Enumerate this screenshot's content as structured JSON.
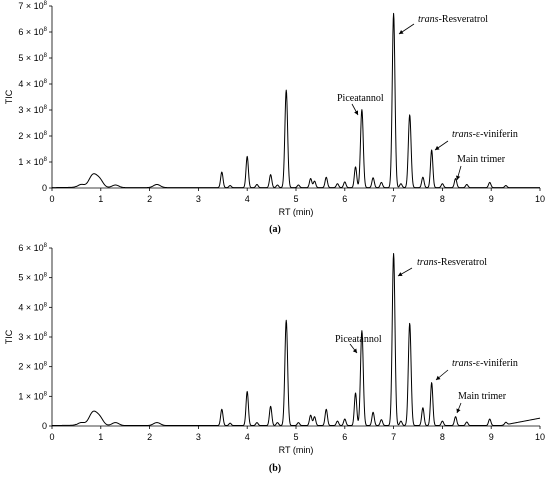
{
  "chart_data": [
    {
      "type": "line",
      "panel_label": "(a)",
      "xlabel": "RT (min)",
      "ylabel": "TIC",
      "xlim": [
        0,
        10
      ],
      "ylim": [
        0,
        700000000
      ],
      "x_ticks": [
        0,
        1,
        2,
        3,
        4,
        5,
        6,
        7,
        8,
        9,
        10
      ],
      "x_tick_labels": [
        "0",
        "1",
        "2",
        "3",
        "4",
        "5",
        "6",
        "7",
        "8",
        "9",
        "10"
      ],
      "y_ticks": [
        0,
        100000000,
        200000000,
        300000000,
        400000000,
        500000000,
        600000000,
        700000000
      ],
      "y_tick_labels": [
        "0",
        "1 × 10^8",
        "2 × 10^8",
        "3 × 10^8",
        "4 × 10^8",
        "5 × 10^8",
        "6 × 10^8",
        "7 × 10^8"
      ],
      "peaks": [
        {
          "rt": 0.6,
          "value": 12000000
        },
        {
          "rt": 0.8,
          "value": 25000000
        },
        {
          "rt": 0.87,
          "value": 30000000
        },
        {
          "rt": 0.98,
          "value": 28000000
        },
        {
          "rt": 1.3,
          "value": 10000000
        },
        {
          "rt": 2.15,
          "value": 12000000
        },
        {
          "rt": 3.48,
          "value": 60000000
        },
        {
          "rt": 3.65,
          "value": 8000000
        },
        {
          "rt": 4.0,
          "value": 120000000
        },
        {
          "rt": 4.2,
          "value": 12000000
        },
        {
          "rt": 4.48,
          "value": 50000000
        },
        {
          "rt": 4.62,
          "value": 10000000
        },
        {
          "rt": 4.8,
          "value": 375000000
        },
        {
          "rt": 5.05,
          "value": 10000000
        },
        {
          "rt": 5.3,
          "value": 35000000
        },
        {
          "rt": 5.38,
          "value": 25000000
        },
        {
          "rt": 5.62,
          "value": 40000000
        },
        {
          "rt": 5.85,
          "value": 15000000
        },
        {
          "rt": 6.0,
          "value": 22000000
        },
        {
          "rt": 6.22,
          "value": 80000000
        },
        {
          "rt": 6.35,
          "value": 300000000
        },
        {
          "rt": 6.58,
          "value": 38000000
        },
        {
          "rt": 6.75,
          "value": 20000000
        },
        {
          "rt": 7.0,
          "value": 670000000
        },
        {
          "rt": 7.15,
          "value": 15000000
        },
        {
          "rt": 7.33,
          "value": 280000000
        },
        {
          "rt": 7.6,
          "value": 40000000
        },
        {
          "rt": 7.78,
          "value": 145000000
        },
        {
          "rt": 8.0,
          "value": 15000000
        },
        {
          "rt": 8.27,
          "value": 35000000
        },
        {
          "rt": 8.5,
          "value": 12000000
        },
        {
          "rt": 8.97,
          "value": 20000000
        },
        {
          "rt": 9.3,
          "value": 8000000
        }
      ],
      "annotations": [
        {
          "prefix": "trans",
          "text": "-Resveratrol",
          "rt": 7.0,
          "value": 670000000
        },
        {
          "prefix": "",
          "text": "Piceatannol",
          "rt": 6.35,
          "value": 300000000
        },
        {
          "prefix": "trans",
          "text": "-ε-viniferin",
          "rt": 7.78,
          "value": 145000000
        },
        {
          "prefix": "",
          "text": "Main trimer",
          "rt": 8.27,
          "value": 35000000
        }
      ]
    },
    {
      "type": "line",
      "panel_label": "(b)",
      "xlabel": "RT (min)",
      "ylabel": "TIC",
      "xlim": [
        0,
        10
      ],
      "ylim": [
        0,
        600000000
      ],
      "x_ticks": [
        0,
        1,
        2,
        3,
        4,
        5,
        6,
        7,
        8,
        9,
        10
      ],
      "x_tick_labels": [
        "0",
        "1",
        "2",
        "3",
        "4",
        "5",
        "6",
        "7",
        "8",
        "9",
        "10"
      ],
      "y_ticks": [
        0,
        100000000,
        200000000,
        300000000,
        400000000,
        500000000,
        600000000
      ],
      "y_tick_labels": [
        "0",
        "1 × 10^8",
        "2 × 10^8",
        "3 × 10^8",
        "4 × 10^8",
        "5 × 10^8",
        "6 × 10^8"
      ],
      "peaks": [
        {
          "rt": 0.6,
          "value": 10000000
        },
        {
          "rt": 0.8,
          "value": 22000000
        },
        {
          "rt": 0.87,
          "value": 28000000
        },
        {
          "rt": 0.98,
          "value": 25000000
        },
        {
          "rt": 1.3,
          "value": 10000000
        },
        {
          "rt": 2.15,
          "value": 10000000
        },
        {
          "rt": 3.48,
          "value": 55000000
        },
        {
          "rt": 3.65,
          "value": 8000000
        },
        {
          "rt": 4.0,
          "value": 115000000
        },
        {
          "rt": 4.2,
          "value": 10000000
        },
        {
          "rt": 4.48,
          "value": 65000000
        },
        {
          "rt": 4.62,
          "value": 10000000
        },
        {
          "rt": 4.8,
          "value": 355000000
        },
        {
          "rt": 5.05,
          "value": 10000000
        },
        {
          "rt": 5.3,
          "value": 35000000
        },
        {
          "rt": 5.38,
          "value": 30000000
        },
        {
          "rt": 5.62,
          "value": 55000000
        },
        {
          "rt": 5.85,
          "value": 15000000
        },
        {
          "rt": 6.0,
          "value": 22000000
        },
        {
          "rt": 6.22,
          "value": 110000000
        },
        {
          "rt": 6.35,
          "value": 320000000
        },
        {
          "rt": 6.58,
          "value": 45000000
        },
        {
          "rt": 6.75,
          "value": 20000000
        },
        {
          "rt": 7.0,
          "value": 580000000
        },
        {
          "rt": 7.15,
          "value": 15000000
        },
        {
          "rt": 7.33,
          "value": 345000000
        },
        {
          "rt": 7.6,
          "value": 60000000
        },
        {
          "rt": 7.78,
          "value": 145000000
        },
        {
          "rt": 8.0,
          "value": 15000000
        },
        {
          "rt": 8.27,
          "value": 30000000
        },
        {
          "rt": 8.5,
          "value": 12000000
        },
        {
          "rt": 8.97,
          "value": 22000000
        },
        {
          "rt": 9.3,
          "value": 8000000
        }
      ],
      "annotations": [
        {
          "prefix": "trans",
          "text": "-Resveratrol",
          "rt": 7.0,
          "value": 580000000
        },
        {
          "prefix": "",
          "text": "Piceatannol",
          "rt": 6.35,
          "value": 320000000
        },
        {
          "prefix": "trans",
          "text": "-ε-viniferin",
          "rt": 7.78,
          "value": 145000000
        },
        {
          "prefix": "",
          "text": "Main trimer",
          "rt": 8.27,
          "value": 30000000
        }
      ]
    }
  ]
}
